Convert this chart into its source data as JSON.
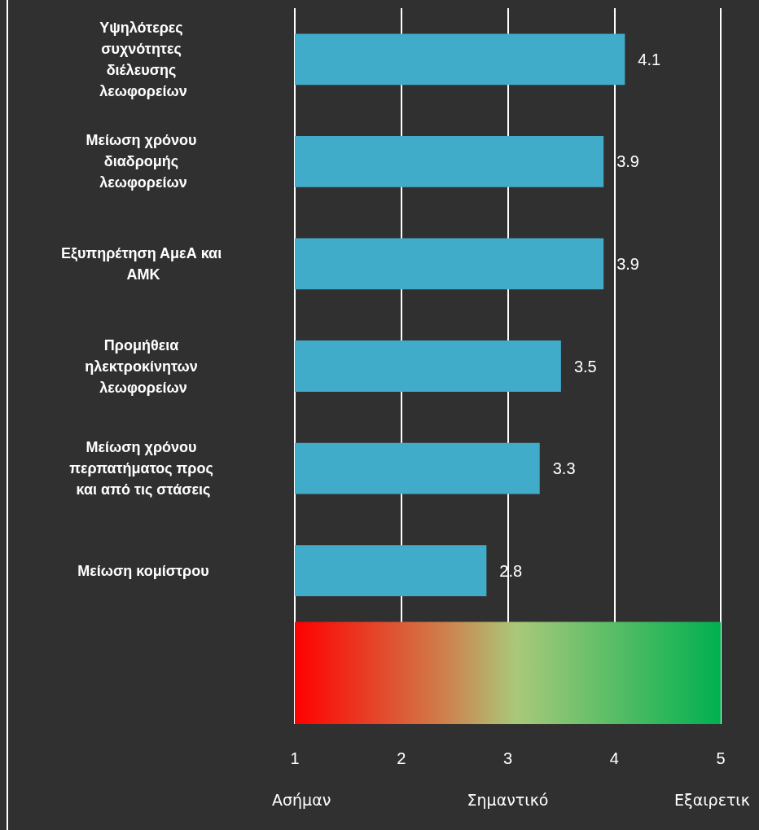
{
  "chart_data": {
    "type": "bar",
    "orientation": "horizontal",
    "categories": [
      "Υψηλότερες συχνότητες διέλευσης λεωφορείων",
      "Μείωση χρόνου διαδρομής λεωφορείων",
      "Εξυπηρέτηση ΑμεΑ και ΑΜΚ",
      "Προμήθεια ηλεκτροκίνητων λεωφορείων",
      "Μείωση χρόνου περπατήματος προς και από τις στάσεις",
      "Μείωση κομίστρου",
      null
    ],
    "values": [
      4.1,
      3.9,
      3.9,
      3.5,
      3.3,
      2.8,
      null
    ],
    "color": "#41acca",
    "data_labels": true,
    "bands": [
      {
        "axis": "x",
        "from": 1,
        "to": 5
      }
    ],
    "xlim": [
      1,
      5
    ],
    "xticks": [
      1,
      2,
      3,
      4,
      5
    ],
    "grid": "x",
    "annotations": [
      "Ασήμαν",
      "Σημαντικό",
      "Εξαιρετικ"
    ]
  }
}
